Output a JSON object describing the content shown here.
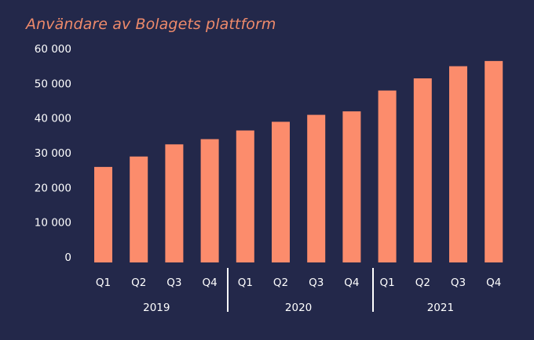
{
  "colors": {
    "background": "#23284a",
    "bar": "#fc8c6c",
    "title": "#ee8a6b",
    "text": "#ffffff",
    "separator": "#ffffff"
  },
  "chart_data": {
    "type": "bar",
    "title": "Användare av Bolagets plattform",
    "xlabel": "",
    "ylabel": "",
    "ylim": [
      0,
      60000
    ],
    "yticks": [
      "0",
      "10 000",
      "20 000",
      "30 000",
      "40 000",
      "50 000",
      "60 000"
    ],
    "grid": false,
    "groups": [
      {
        "label": "2019",
        "categories": [
          "Q1",
          "Q2",
          "Q3",
          "Q4"
        ],
        "values": [
          27500,
          30500,
          34000,
          35500
        ]
      },
      {
        "label": "2020",
        "categories": [
          "Q1",
          "Q2",
          "Q3",
          "Q4"
        ],
        "values": [
          38000,
          40500,
          42500,
          43500
        ]
      },
      {
        "label": "2021",
        "categories": [
          "Q1",
          "Q2",
          "Q3",
          "Q4"
        ],
        "values": [
          49500,
          53000,
          56500,
          58000
        ]
      }
    ]
  }
}
